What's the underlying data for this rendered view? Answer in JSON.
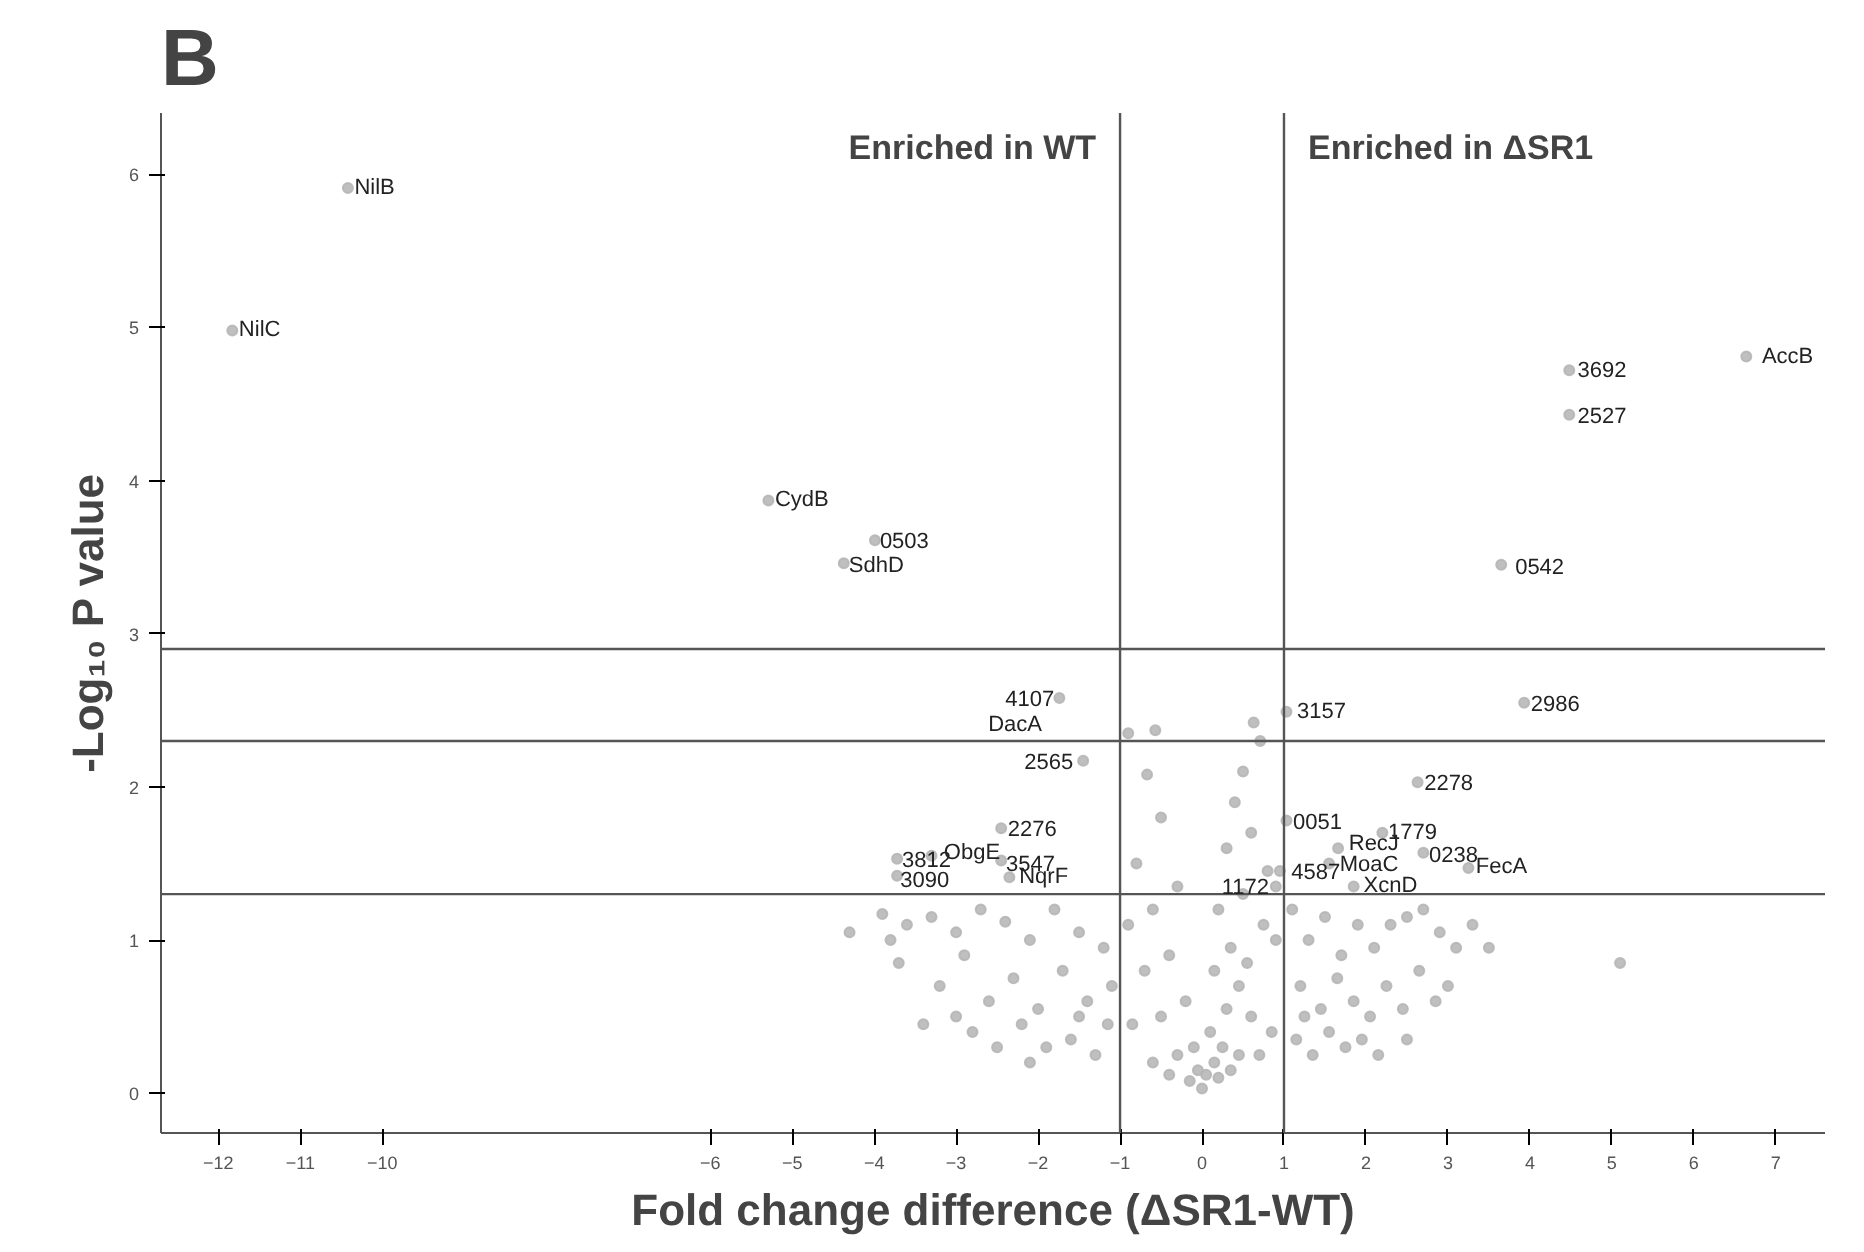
{
  "chart_data": {
    "type": "scatter",
    "title": "B",
    "xlabel": "Fold change difference (ΔSR1-WT)",
    "ylabel": "-Log₁₀ P value",
    "xlim": [
      -12.7,
      7.6
    ],
    "ylim": [
      -0.26,
      6.4
    ],
    "xticks": [
      -12,
      -11,
      -10,
      -6,
      -5,
      -4,
      -3,
      -2,
      -1,
      0,
      1,
      2,
      3,
      4,
      5,
      6,
      7
    ],
    "yticks": [
      0,
      1,
      2,
      3,
      4,
      5,
      6
    ],
    "grid": false,
    "marker": "circle",
    "ref_lines": [
      {
        "axis": "x",
        "value": -1,
        "color": "#555555"
      },
      {
        "axis": "x",
        "value": 1,
        "color": "#555555"
      },
      {
        "axis": "y",
        "value": 2.9,
        "color": "#555555"
      },
      {
        "axis": "y",
        "value": 2.3,
        "color": "#555555"
      },
      {
        "axis": "y",
        "value": 1.3,
        "color": "#555555"
      }
    ],
    "annotations": [
      "Enriched in WT",
      "Enriched in ΔSR1",
      {
        "text": "NilB",
        "x": -10.34,
        "y": 5.91
      },
      {
        "text": "NilC",
        "x": -11.75,
        "y": 4.98
      },
      {
        "text": "CydB",
        "x": -5.21,
        "y": 3.87
      },
      {
        "text": "0503",
        "x": -3.93,
        "y": 3.61
      },
      {
        "text": "SdhD",
        "x": -4.31,
        "y": 3.44
      },
      {
        "text": "4107",
        "x": -1.68,
        "y": 2.58
      },
      {
        "text": "DacA",
        "x": -1.83,
        "y": 2.3
      },
      {
        "text": "2565",
        "x": -1.45,
        "y": 2.17
      },
      {
        "text": "2276",
        "x": -2.37,
        "y": 1.73
      },
      {
        "text": "3812",
        "x": -3.66,
        "y": 1.53
      },
      {
        "text": "ObgE",
        "x": -3.15,
        "y": 1.57
      },
      {
        "text": "3090",
        "x": -3.68,
        "y": 1.4
      },
      {
        "text": "3547",
        "x": -2.39,
        "y": 1.5
      },
      {
        "text": "NqrF",
        "x": -2.23,
        "y": 1.41
      },
      {
        "text": "3157",
        "x": 1.16,
        "y": 2.5
      },
      {
        "text": "2986",
        "x": 4.01,
        "y": 2.55
      },
      {
        "text": "2278",
        "x": 2.71,
        "y": 2.03
      },
      {
        "text": "0051",
        "x": 1.11,
        "y": 1.78
      },
      {
        "text": "1779",
        "x": 2.27,
        "y": 1.71
      },
      {
        "text": "RecJ",
        "x": 1.79,
        "y": 1.63
      },
      {
        "text": "0238",
        "x": 2.77,
        "y": 1.56
      },
      {
        "text": "FecA",
        "x": 3.34,
        "y": 1.48
      },
      {
        "text": "4587",
        "x": 1.09,
        "y": 1.45
      },
      {
        "text": "MoaC",
        "x": 1.68,
        "y": 1.49
      },
      {
        "text": "1172",
        "x": 0.94,
        "y": 1.35
      },
      {
        "text": "XcnD",
        "x": 1.97,
        "y": 1.35
      },
      {
        "text": "3692",
        "x": 4.58,
        "y": 4.73
      },
      {
        "text": "2527",
        "x": 4.58,
        "y": 4.43
      },
      {
        "text": "AccB",
        "x": 6.83,
        "y": 4.81
      },
      {
        "text": "0542",
        "x": 3.82,
        "y": 3.44
      }
    ],
    "series": [
      {
        "color": "#b4b4b4",
        "x": [
          -10.42,
          -11.83,
          -5.29,
          -3.99,
          -4.37,
          -1.74,
          -1.45,
          -2.45,
          -3.72,
          -3.3,
          -3.72,
          -2.45,
          -2.35,
          1.03,
          3.93,
          2.63,
          1.03,
          2.2,
          1.66,
          2.7,
          3.25,
          0.95,
          1.55,
          0.9,
          1.85,
          4.48,
          4.48,
          6.64,
          3.65,
          -3.9,
          -3.6,
          -3.3,
          -3.0,
          -2.7,
          -2.4,
          -2.1,
          -1.8,
          -1.5,
          -1.2,
          -3.7,
          -3.2,
          -2.9,
          -2.6,
          -2.3,
          -2.0,
          -1.7,
          -1.4,
          -1.1,
          -3.4,
          -2.8,
          -2.5,
          -2.2,
          -1.9,
          -1.6,
          -1.3,
          -1.15,
          -3.0,
          -2.1,
          -1.5,
          -4.3,
          -3.8,
          -0.9,
          -0.57,
          -0.67,
          0.63,
          0.71,
          0.5,
          0.4,
          -0.5,
          -0.8,
          0.3,
          0.6,
          0.8,
          -0.3,
          0.2,
          0.5,
          0.75,
          -0.6,
          -0.9,
          0.9,
          -0.4,
          0.35,
          0.55,
          -0.7,
          0.15,
          0.45,
          -0.2,
          0.3,
          0.6,
          -0.5,
          -0.85,
          0.85,
          0.1,
          -0.1,
          0.25,
          -0.3,
          0.45,
          0.7,
          -0.6,
          0.05,
          -0.15,
          0.2,
          0.0,
          -0.05,
          0.35,
          -0.4,
          0.15,
          1.1,
          1.3,
          1.5,
          1.7,
          1.9,
          2.1,
          2.3,
          2.5,
          2.7,
          2.9,
          3.1,
          3.3,
          1.2,
          1.45,
          1.65,
          1.85,
          2.05,
          2.25,
          2.45,
          2.65,
          2.85,
          3.0,
          1.15,
          1.35,
          1.55,
          1.75,
          1.95,
          2.15,
          2.5,
          1.25,
          5.1,
          3.5
        ],
        "values": [
          5.91,
          4.98,
          3.87,
          3.61,
          3.46,
          2.58,
          2.17,
          1.73,
          1.53,
          1.55,
          1.42,
          1.52,
          1.41,
          2.49,
          2.55,
          2.03,
          1.78,
          1.7,
          1.6,
          1.57,
          1.47,
          1.45,
          1.5,
          1.35,
          1.35,
          4.72,
          4.43,
          4.81,
          3.45,
          1.17,
          1.1,
          1.15,
          1.05,
          1.2,
          1.12,
          1.0,
          1.2,
          1.05,
          0.95,
          0.85,
          0.7,
          0.9,
          0.6,
          0.75,
          0.55,
          0.8,
          0.6,
          0.7,
          0.45,
          0.4,
          0.3,
          0.45,
          0.3,
          0.35,
          0.25,
          0.45,
          0.5,
          0.2,
          0.5,
          1.05,
          1.0,
          2.35,
          2.37,
          2.08,
          2.42,
          2.3,
          2.1,
          1.9,
          1.8,
          1.5,
          1.6,
          1.7,
          1.45,
          1.35,
          1.2,
          1.3,
          1.1,
          1.2,
          1.1,
          1.0,
          0.9,
          0.95,
          0.85,
          0.8,
          0.8,
          0.7,
          0.6,
          0.55,
          0.5,
          0.5,
          0.45,
          0.4,
          0.4,
          0.3,
          0.3,
          0.25,
          0.25,
          0.25,
          0.2,
          0.12,
          0.08,
          0.1,
          0.03,
          0.15,
          0.15,
          0.12,
          0.2,
          1.2,
          1.0,
          1.15,
          0.9,
          1.1,
          0.95,
          1.1,
          1.15,
          1.2,
          1.05,
          0.95,
          1.1,
          0.7,
          0.55,
          0.75,
          0.6,
          0.5,
          0.7,
          0.55,
          0.8,
          0.6,
          0.7,
          0.35,
          0.25,
          0.4,
          0.3,
          0.35,
          0.25,
          0.35,
          0.5,
          0.85,
          0.95
        ]
      }
    ]
  }
}
